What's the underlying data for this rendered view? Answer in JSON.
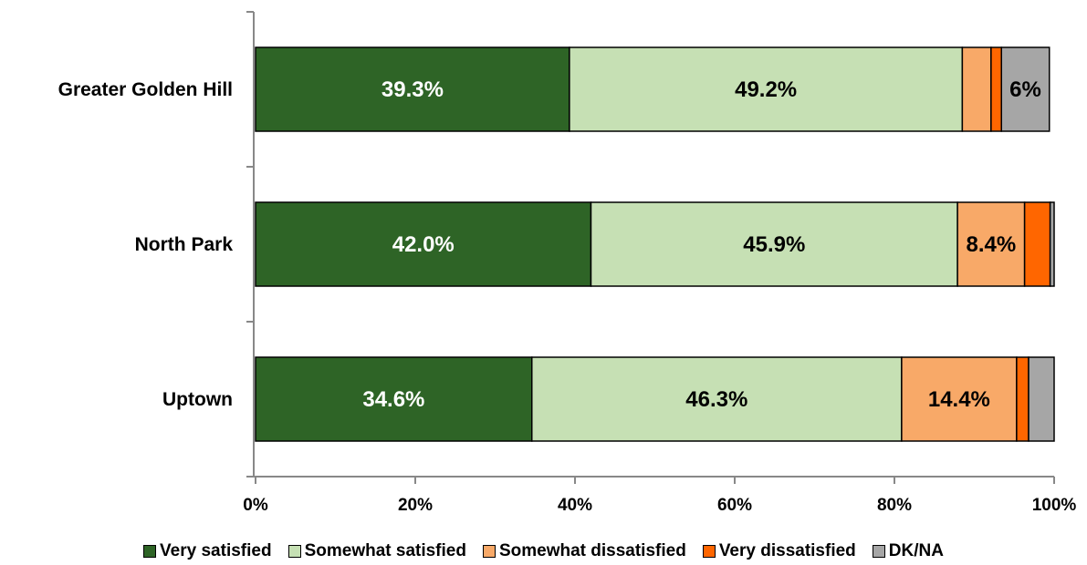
{
  "chart_data": {
    "type": "bar",
    "orientation": "horizontal",
    "stacked": true,
    "categories": [
      "Greater Golden Hill",
      "North Park",
      "Uptown"
    ],
    "series": [
      {
        "name": "Very satisfied",
        "color": "#2e6426",
        "values": [
          39.3,
          42.0,
          34.6
        ],
        "labels": [
          "39.3%",
          "42.0%",
          "34.6%"
        ],
        "label_color": "#ffffff"
      },
      {
        "name": "Somewhat satisfied",
        "color": "#c6e0b4",
        "values": [
          49.2,
          45.9,
          46.3
        ],
        "labels": [
          "49.2%",
          "45.9%",
          "46.3%"
        ],
        "label_color": "#000000"
      },
      {
        "name": "Somewhat dissatisfied",
        "color": "#f8a968",
        "values": [
          3.6,
          8.4,
          14.4
        ],
        "labels": [
          "",
          "8.4%",
          "14.4%"
        ],
        "label_color": "#000000"
      },
      {
        "name": "Very dissatisfied",
        "color": "#ff6600",
        "values": [
          1.3,
          3.2,
          1.5
        ],
        "labels": [
          "",
          "",
          ""
        ],
        "label_color": "#000000"
      },
      {
        "name": "DK/NA",
        "color": "#a6a6a6",
        "values": [
          6.0,
          0.5,
          3.2
        ],
        "labels": [
          "6%",
          "",
          ""
        ],
        "label_color": "#000000"
      }
    ],
    "x_ticks": [
      "0%",
      "20%",
      "40%",
      "60%",
      "80%",
      "100%"
    ],
    "xlim": [
      0,
      100
    ],
    "grid": false,
    "legend_position": "bottom"
  }
}
